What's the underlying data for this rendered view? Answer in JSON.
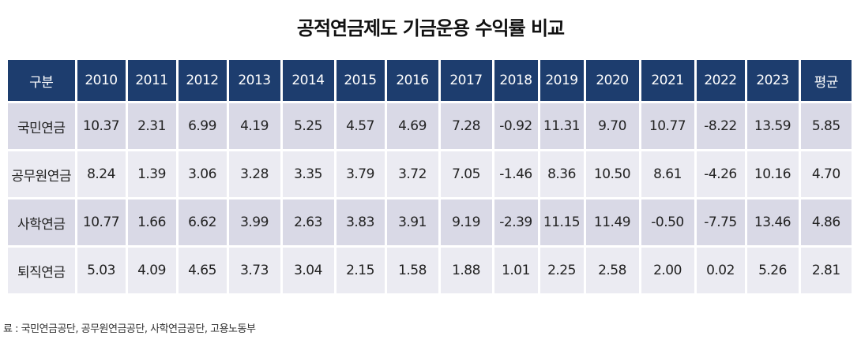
{
  "title": "공적연금제도 기금운용 수익률 비교",
  "table": {
    "headers": [
      "구분",
      "2010",
      "2011",
      "2012",
      "2013",
      "2014",
      "2015",
      "2016",
      "2017",
      "2018",
      "2019",
      "2020",
      "2021",
      "2022",
      "2023",
      "평균"
    ],
    "rows": [
      [
        "국민연금",
        "10.37",
        "2.31",
        "6.99",
        "4.19",
        "5.25",
        "4.57",
        "4.69",
        "7.28",
        "-0.92",
        "11.31",
        "9.70",
        "10.77",
        "-8.22",
        "13.59",
        "5.85"
      ],
      [
        "공무원연금",
        "8.24",
        "1.39",
        "3.06",
        "3.28",
        "3.35",
        "3.79",
        "3.72",
        "7.05",
        "-1.46",
        "8.36",
        "10.50",
        "8.61",
        "-4.26",
        "10.16",
        "4.70"
      ],
      [
        "사학연금",
        "10.77",
        "1.66",
        "6.62",
        "3.99",
        "2.63",
        "3.83",
        "3.91",
        "9.19",
        "-2.39",
        "11.15",
        "11.49",
        "-0.50",
        "-7.75",
        "13.46",
        "4.86"
      ],
      [
        "퇴직연금",
        "5.03",
        "4.09",
        "4.65",
        "3.73",
        "3.04",
        "2.15",
        "1.58",
        "1.88",
        "1.01",
        "2.25",
        "2.58",
        "2.00",
        "0.02",
        "5.26",
        "2.81"
      ]
    ]
  },
  "source": "료 : 국민연금공단, 공무원연금공단, 사학연금공단, 고용노동부",
  "colors": {
    "header_bg": "#1d3d6e",
    "row_shade": "#d9d9e6",
    "row_light": "#ebebf2"
  }
}
